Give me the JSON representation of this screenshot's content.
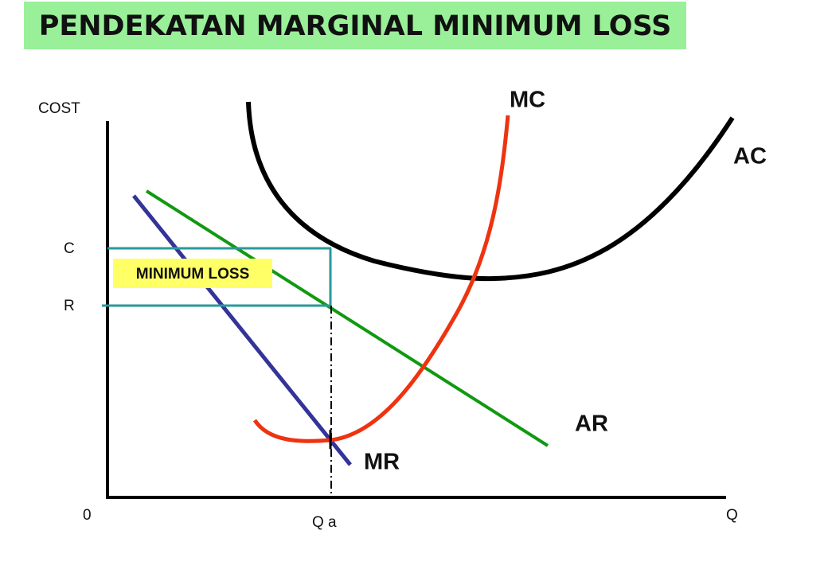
{
  "header": {
    "title": "PENDEKATAN MARGINAL MINIMUM LOSS"
  },
  "axes": {
    "y_label": "COST",
    "x_label": "Q",
    "origin": "0"
  },
  "levels": {
    "c": "C",
    "r": "R",
    "qa": "Q a"
  },
  "curves": {
    "mc": "MC",
    "ac": "AC",
    "ar": "AR",
    "mr": "MR"
  },
  "annotation": "MINIMUM LOSS"
}
